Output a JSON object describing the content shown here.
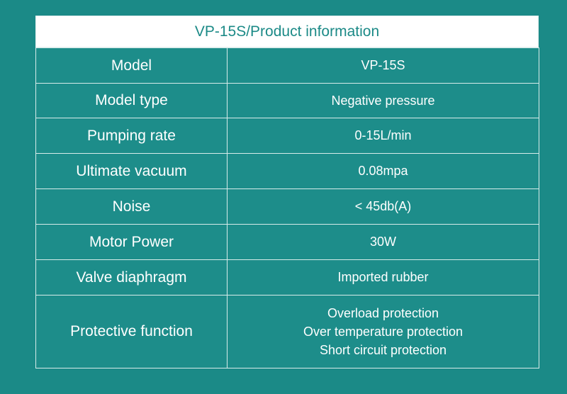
{
  "table": {
    "title": "VP-15S/Product information",
    "rows": [
      {
        "label": "Model",
        "value": "VP-15S"
      },
      {
        "label": "Model type",
        "value": "Negative pressure"
      },
      {
        "label": "Pumping rate",
        "value": "0-15L/min"
      },
      {
        "label": "Ultimate vacuum",
        "value": "0.08mpa"
      },
      {
        "label": "Noise",
        "value": "< 45db(A)"
      },
      {
        "label": "Motor Power",
        "value": "30W"
      },
      {
        "label": "Valve diaphragm",
        "value": "Imported rubber"
      },
      {
        "label": "Protective function",
        "values": [
          "Overload protection",
          "Over temperature protection",
          "Short circuit protection"
        ]
      }
    ]
  },
  "colors": {
    "background": "#1b8a87",
    "header_bg": "#ffffff",
    "header_text": "#1c8a87",
    "table_text": "#ffffff",
    "grid_line": "#d7ecea"
  }
}
